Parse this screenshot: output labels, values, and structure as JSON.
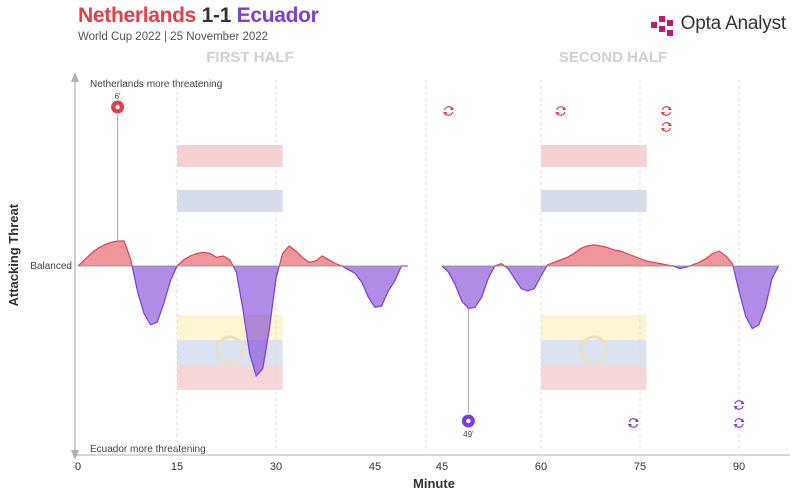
{
  "header": {
    "home_team": "Netherlands",
    "score": "1-1",
    "away_team": "Ecuador",
    "subtitle": "World Cup 2022 | 25 November 2022",
    "brand": "Opta Analyst",
    "colors": {
      "home": "#e0404a",
      "away": "#7b3fd6"
    }
  },
  "chart_data": {
    "type": "area",
    "title": "Netherlands 1-1 Ecuador",
    "subtitle": "World Cup 2022 | 25 November 2022",
    "xlabel": "Minute",
    "ylabel": "Attacking Threat",
    "top_label": "Netherlands more threatening",
    "bottom_label": "Ecuador more threatening",
    "baseline_label": "Balanced",
    "ylim": [
      -1,
      1
    ],
    "period_labels": [
      "FIRST HALF",
      "SECOND HALF"
    ],
    "periods": [
      {
        "name": "FIRST HALF",
        "x": [
          0,
          1,
          2,
          3,
          4,
          5,
          6,
          7,
          8,
          9,
          10,
          11,
          12,
          13,
          14,
          15,
          16,
          17,
          18,
          19,
          20,
          21,
          22,
          23,
          24,
          25,
          26,
          27,
          28,
          29,
          30,
          31,
          32,
          33,
          34,
          35,
          36,
          37,
          38,
          39,
          40,
          41,
          42,
          43,
          44,
          45,
          46,
          47,
          48,
          49,
          50
        ],
        "values": [
          0,
          0.05,
          0.1,
          0.14,
          0.17,
          0.19,
          0.2,
          0.2,
          0.05,
          -0.2,
          -0.38,
          -0.47,
          -0.45,
          -0.3,
          -0.12,
          0,
          0.05,
          0.08,
          0.1,
          0.11,
          0.1,
          0.07,
          0.08,
          0.05,
          -0.05,
          -0.35,
          -0.7,
          -0.88,
          -0.82,
          -0.5,
          -0.1,
          0.1,
          0.16,
          0.12,
          0.07,
          0.03,
          0.04,
          0.08,
          0.05,
          0.02,
          0,
          -0.03,
          -0.06,
          -0.13,
          -0.25,
          -0.33,
          -0.32,
          -0.2,
          -0.12,
          0,
          0
        ]
      },
      {
        "name": "SECOND HALF",
        "x": [
          45,
          46,
          47,
          48,
          49,
          50,
          51,
          52,
          53,
          54,
          55,
          56,
          57,
          58,
          59,
          60,
          61,
          62,
          63,
          64,
          65,
          66,
          67,
          68,
          69,
          70,
          71,
          72,
          73,
          74,
          75,
          76,
          77,
          78,
          79,
          80,
          81,
          82,
          83,
          84,
          85,
          86,
          87,
          88,
          89,
          90,
          91,
          92,
          93,
          94,
          95,
          96
        ],
        "values": [
          0,
          -0.05,
          -0.15,
          -0.28,
          -0.34,
          -0.33,
          -0.25,
          -0.1,
          0,
          0.02,
          -0.02,
          -0.1,
          -0.18,
          -0.2,
          -0.18,
          -0.08,
          0.01,
          0.03,
          0.05,
          0.07,
          0.1,
          0.14,
          0.16,
          0.17,
          0.16,
          0.15,
          0.13,
          0.12,
          0.1,
          0.08,
          0.06,
          0.04,
          0.03,
          0.02,
          0.01,
          0,
          -0.02,
          -0.01,
          0.01,
          0.03,
          0.06,
          0.1,
          0.12,
          0.08,
          0.02,
          -0.2,
          -0.4,
          -0.5,
          -0.47,
          -0.33,
          -0.1,
          0
        ]
      }
    ],
    "x_ticks": [
      {
        "minute": 0,
        "label": "0"
      },
      {
        "minute": 15,
        "label": "15"
      },
      {
        "minute": 30,
        "label": "30"
      },
      {
        "minute": 45,
        "label": "45"
      },
      {
        "minute": 45,
        "label": "45",
        "period": 1
      },
      {
        "minute": 60,
        "label": "60",
        "period": 1
      },
      {
        "minute": 75,
        "label": "75",
        "period": 1
      },
      {
        "minute": 90,
        "label": "90",
        "period": 1
      }
    ],
    "goals": [
      {
        "team": "Netherlands",
        "minute": 6,
        "label": "6'",
        "period": 0,
        "value": 0.2
      },
      {
        "team": "Ecuador",
        "minute": 49,
        "label": "49'",
        "period": 1,
        "value": -0.34
      }
    ],
    "substitutions": [
      {
        "team": "Netherlands",
        "minute": 46,
        "period": 1,
        "stack": 0
      },
      {
        "team": "Netherlands",
        "minute": 63,
        "period": 1,
        "stack": 0
      },
      {
        "team": "Netherlands",
        "minute": 79,
        "period": 1,
        "stack": 0
      },
      {
        "team": "Netherlands",
        "minute": 79,
        "period": 1,
        "stack": 1
      },
      {
        "team": "Ecuador",
        "minute": 74,
        "period": 1,
        "stack": 0
      },
      {
        "team": "Ecuador",
        "minute": 90,
        "period": 1,
        "stack": 0
      },
      {
        "team": "Ecuador",
        "minute": 90,
        "period": 1,
        "stack": 1
      }
    ],
    "flags": [
      {
        "team": "Netherlands",
        "period": 0,
        "start": 15,
        "end": 31,
        "colors": [
          "#f4d2d3",
          "#ffffff",
          "#d6dcea"
        ]
      },
      {
        "team": "Netherlands",
        "period": 1,
        "start": 60,
        "end": 76,
        "colors": [
          "#f4d2d3",
          "#ffffff",
          "#d6dcea"
        ]
      },
      {
        "team": "Ecuador",
        "period": 0,
        "start": 15,
        "end": 31,
        "colors": [
          "#fbf6d0",
          "#dbe2f1",
          "#f7d6d8"
        ]
      },
      {
        "team": "Ecuador",
        "period": 1,
        "start": 60,
        "end": 76,
        "colors": [
          "#fbf6d0",
          "#dbe2f1",
          "#f7d6d8"
        ]
      }
    ],
    "grid": false,
    "colors": {
      "positive": "#e0404a",
      "negative": "#7b3fd6"
    }
  }
}
